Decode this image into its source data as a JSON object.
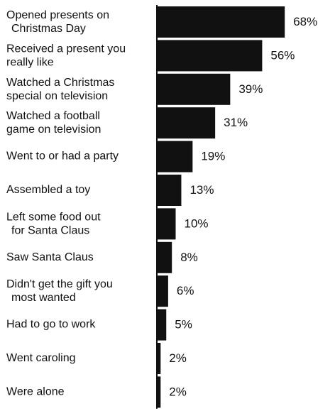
{
  "chart_data": {
    "type": "bar",
    "orientation": "horizontal",
    "categories": [
      [
        "Opened presents on",
        "Christmas Day"
      ],
      [
        "Received a present you",
        "really like"
      ],
      [
        "Watched a Christmas",
        "special on television"
      ],
      [
        "Watched a football",
        "game on television"
      ],
      [
        "Went to or had a party"
      ],
      [
        "Assembled a toy"
      ],
      [
        "Left some food out",
        "for Santa Claus"
      ],
      [
        "Saw Santa Claus"
      ],
      [
        "Didn't get the gift you",
        "most wanted"
      ],
      [
        "Had to go to work"
      ],
      [
        "Went caroling"
      ],
      [
        "Were alone"
      ]
    ],
    "values": [
      68,
      56,
      39,
      31,
      19,
      13,
      10,
      8,
      6,
      5,
      2,
      2
    ],
    "value_labels": [
      "68%",
      "56%",
      "39%",
      "31%",
      "19%",
      "13%",
      "10%",
      "8%",
      "6%",
      "5%",
      "2%",
      "2%"
    ],
    "bar_color": "#111111",
    "axis_line": true,
    "grid": false,
    "legend": "none"
  }
}
